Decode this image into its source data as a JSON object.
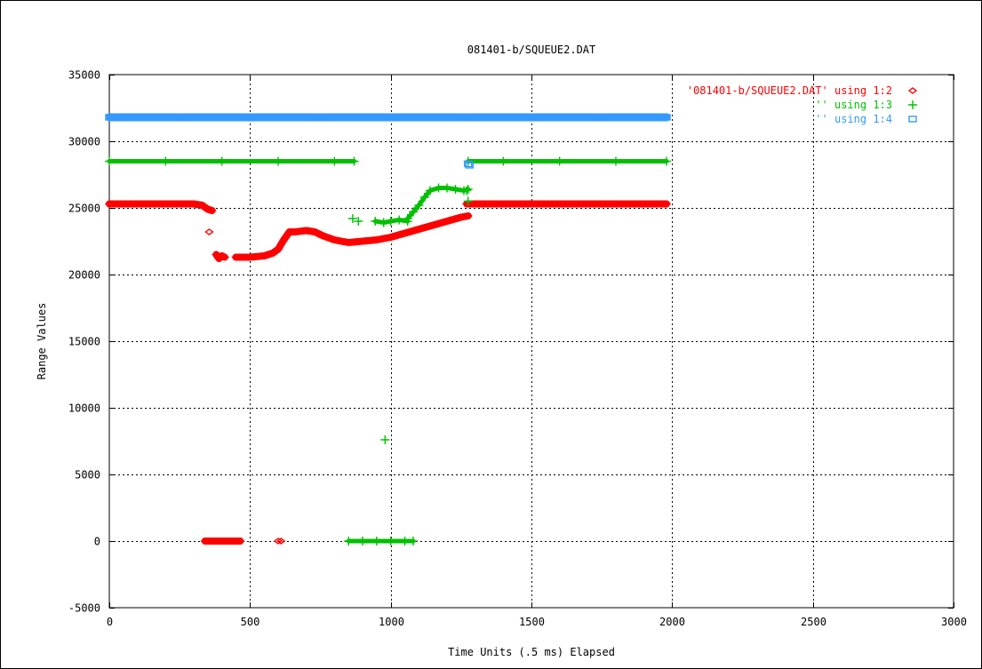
{
  "chart_data": {
    "type": "scatter",
    "title": "081401-b/SQUEUE2.DAT",
    "xlabel": "Time Units (.5 ms) Elapsed",
    "ylabel": "Range Values",
    "xlim": [
      0,
      3000
    ],
    "ylim": [
      -5000,
      35000
    ],
    "xticks": [
      "0",
      "500",
      "1000",
      "1500",
      "2000",
      "2500",
      "3000"
    ],
    "yticks": [
      "-5000",
      "0",
      "5000",
      "10000",
      "15000",
      "20000",
      "25000",
      "30000",
      "35000"
    ],
    "grid": true,
    "legend_position": "top-right",
    "series": [
      {
        "name": "'081401-b/SQUEUE2.DAT' using 1:2",
        "color": "#ff0000",
        "marker": "diamond",
        "segments": [
          [
            [
              0,
              25300
            ],
            [
              100,
              25300
            ],
            [
              200,
              25300
            ],
            [
              300,
              25300
            ],
            [
              330,
              25200
            ],
            [
              350,
              24900
            ],
            [
              365,
              24800
            ]
          ],
          [
            [
              380,
              21500
            ],
            [
              390,
              21200
            ],
            [
              400,
              21400
            ],
            [
              410,
              21300
            ]
          ],
          [
            [
              450,
              21300
            ],
            [
              500,
              21300
            ],
            [
              550,
              21400
            ],
            [
              580,
              21600
            ],
            [
              600,
              21900
            ],
            [
              620,
              22600
            ],
            [
              640,
              23200
            ],
            [
              660,
              23200
            ],
            [
              700,
              23300
            ],
            [
              730,
              23200
            ],
            [
              760,
              22900
            ],
            [
              800,
              22600
            ],
            [
              850,
              22400
            ],
            [
              900,
              22500
            ],
            [
              950,
              22600
            ],
            [
              1000,
              22800
            ],
            [
              1050,
              23100
            ],
            [
              1100,
              23400
            ],
            [
              1150,
              23700
            ],
            [
              1200,
              24000
            ],
            [
              1250,
              24300
            ],
            [
              1275,
              24400
            ]
          ],
          [
            [
              1270,
              25300
            ],
            [
              1400,
              25300
            ],
            [
              1600,
              25300
            ],
            [
              1800,
              25300
            ],
            [
              1980,
              25300
            ]
          ],
          [
            [
              340,
              0
            ],
            [
              380,
              0
            ],
            [
              420,
              0
            ],
            [
              450,
              0
            ],
            [
              465,
              0
            ]
          ]
        ],
        "points": [
          [
            355,
            23200
          ],
          [
            600,
            0
          ],
          [
            610,
            0
          ]
        ]
      },
      {
        "name": "'' using 1:3",
        "color": "#00c000",
        "marker": "plus",
        "segments": [
          [
            [
              0,
              28500
            ],
            [
              200,
              28500
            ],
            [
              400,
              28500
            ],
            [
              600,
              28500
            ],
            [
              800,
              28500
            ],
            [
              870,
              28500
            ]
          ],
          [
            [
              945,
              24000
            ],
            [
              975,
              23900
            ],
            [
              1000,
              24000
            ],
            [
              1030,
              24100
            ],
            [
              1060,
              24000
            ]
          ],
          [
            [
              1060,
              24200
            ],
            [
              1080,
              24700
            ],
            [
              1100,
              25200
            ],
            [
              1120,
              25800
            ],
            [
              1140,
              26300
            ],
            [
              1170,
              26500
            ],
            [
              1200,
              26500
            ],
            [
              1230,
              26400
            ],
            [
              1260,
              26300
            ],
            [
              1275,
              26400
            ]
          ],
          [
            [
              1275,
              28500
            ],
            [
              1400,
              28500
            ],
            [
              1600,
              28500
            ],
            [
              1800,
              28500
            ],
            [
              1980,
              28500
            ]
          ],
          [
            [
              850,
              0
            ],
            [
              900,
              0
            ],
            [
              950,
              0
            ],
            [
              1000,
              0
            ],
            [
              1050,
              0
            ],
            [
              1080,
              0
            ]
          ]
        ],
        "points": [
          [
            865,
            24200
          ],
          [
            885,
            24000
          ],
          [
            980,
            7600
          ],
          [
            1270,
            26300
          ],
          [
            1275,
            25500
          ]
        ]
      },
      {
        "name": "'' using 1:4",
        "color": "#3399ff",
        "marker": "square",
        "segments": [
          [
            [
              0,
              31800
            ],
            [
              250,
              31800
            ],
            [
              500,
              31800
            ],
            [
              750,
              31800
            ],
            [
              1000,
              31800
            ],
            [
              1250,
              31800
            ],
            [
              1500,
              31800
            ],
            [
              1750,
              31800
            ],
            [
              1980,
              31800
            ]
          ]
        ],
        "points": [
          [
            1275,
            28300
          ],
          [
            1280,
            28200
          ]
        ]
      }
    ]
  }
}
